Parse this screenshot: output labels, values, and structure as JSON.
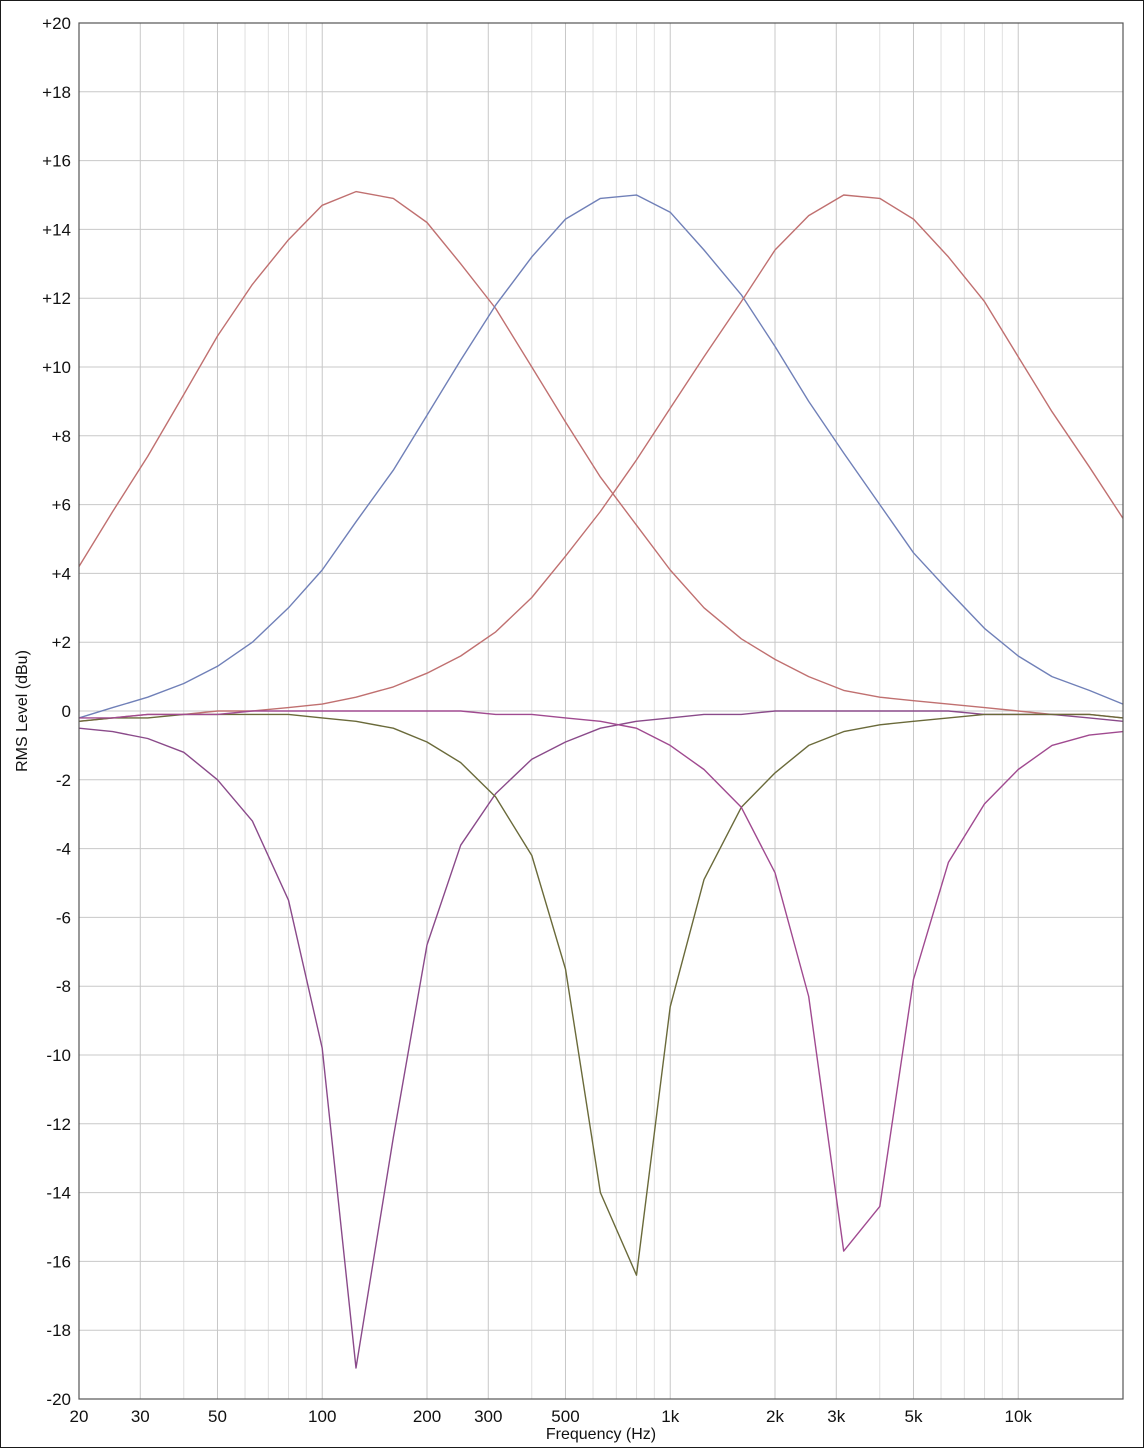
{
  "chart_data": {
    "type": "line",
    "xlabel": "Frequency (Hz)",
    "ylabel": "RMS Level (dBu)",
    "xscale": "log",
    "xlim": [
      20,
      20000
    ],
    "ylim": [
      -20,
      20
    ],
    "grid": true,
    "x_tick_labels": [
      {
        "value": 20,
        "label": "20"
      },
      {
        "value": 30,
        "label": "30"
      },
      {
        "value": 50,
        "label": "50"
      },
      {
        "value": 100,
        "label": "100"
      },
      {
        "value": 200,
        "label": "200"
      },
      {
        "value": 300,
        "label": "300"
      },
      {
        "value": 500,
        "label": "500"
      },
      {
        "value": 1000,
        "label": "1k"
      },
      {
        "value": 2000,
        "label": "2k"
      },
      {
        "value": 3000,
        "label": "3k"
      },
      {
        "value": 5000,
        "label": "5k"
      },
      {
        "value": 10000,
        "label": "10k"
      }
    ],
    "y_tick_labels": [
      {
        "value": 20,
        "label": "+20"
      },
      {
        "value": 18,
        "label": "+18"
      },
      {
        "value": 16,
        "label": "+16"
      },
      {
        "value": 14,
        "label": "+14"
      },
      {
        "value": 12,
        "label": "+12"
      },
      {
        "value": 10,
        "label": "+10"
      },
      {
        "value": 8,
        "label": "+8"
      },
      {
        "value": 6,
        "label": "+6"
      },
      {
        "value": 4,
        "label": "+4"
      },
      {
        "value": 2,
        "label": "+2"
      },
      {
        "value": 0,
        "label": "0"
      },
      {
        "value": -2,
        "label": "-2"
      },
      {
        "value": -4,
        "label": "-4"
      },
      {
        "value": -6,
        "label": "-6"
      },
      {
        "value": -8,
        "label": "-8"
      },
      {
        "value": -10,
        "label": "-10"
      },
      {
        "value": -12,
        "label": "-12"
      },
      {
        "value": -14,
        "label": "-14"
      },
      {
        "value": -16,
        "label": "-16"
      },
      {
        "value": -18,
        "label": "-18"
      },
      {
        "value": -20,
        "label": "-20"
      }
    ],
    "x": [
      20,
      25,
      31.5,
      40,
      50,
      63,
      80,
      100,
      125,
      160,
      200,
      250,
      315,
      400,
      500,
      630,
      800,
      1000,
      1250,
      1600,
      2000,
      2500,
      3150,
      4000,
      5000,
      6300,
      8000,
      10000,
      12500,
      16000,
      20000
    ],
    "series": [
      {
        "color": "#c07070",
        "values": [
          4.2,
          5.8,
          7.4,
          9.2,
          10.9,
          12.4,
          13.7,
          14.7,
          15.1,
          14.9,
          14.2,
          13.0,
          11.7,
          10.0,
          8.4,
          6.8,
          5.4,
          4.1,
          3.0,
          2.1,
          1.5,
          1.0,
          0.6,
          0.4,
          0.3,
          0.2,
          0.1,
          0.0,
          -0.1,
          -0.1,
          -0.2
        ]
      },
      {
        "color": "#7080b8",
        "values": [
          -0.2,
          0.1,
          0.4,
          0.8,
          1.3,
          2.0,
          3.0,
          4.1,
          5.5,
          7.0,
          8.6,
          10.2,
          11.8,
          13.2,
          14.3,
          14.9,
          15.0,
          14.5,
          13.4,
          12.1,
          10.6,
          9.0,
          7.5,
          6.0,
          4.6,
          3.5,
          2.4,
          1.6,
          1.0,
          0.6,
          0.2
        ]
      },
      {
        "color": "#c07070",
        "values": [
          -0.3,
          -0.2,
          -0.1,
          -0.1,
          0.0,
          0.0,
          0.1,
          0.2,
          0.4,
          0.7,
          1.1,
          1.6,
          2.3,
          3.3,
          4.5,
          5.8,
          7.3,
          8.8,
          10.3,
          11.9,
          13.4,
          14.4,
          15.0,
          14.9,
          14.3,
          13.2,
          11.9,
          10.3,
          8.7,
          7.1,
          5.6
        ]
      },
      {
        "color": "#8a4a8a",
        "values": [
          -0.5,
          -0.6,
          -0.8,
          -1.2,
          -2.0,
          -3.2,
          -5.5,
          -9.8,
          -19.1,
          -12.4,
          -6.8,
          -3.9,
          -2.4,
          -1.4,
          -0.9,
          -0.5,
          -0.3,
          -0.2,
          -0.1,
          -0.1,
          0.0,
          0.0,
          0.0,
          0.0,
          0.0,
          0.0,
          -0.1,
          -0.1,
          -0.1,
          -0.2,
          -0.3
        ]
      },
      {
        "color": "#6a6a3a",
        "values": [
          -0.3,
          -0.2,
          -0.2,
          -0.1,
          -0.1,
          -0.1,
          -0.1,
          -0.2,
          -0.3,
          -0.5,
          -0.9,
          -1.5,
          -2.5,
          -4.2,
          -7.5,
          -14.0,
          -16.4,
          -8.6,
          -4.9,
          -2.8,
          -1.8,
          -1.0,
          -0.6,
          -0.4,
          -0.3,
          -0.2,
          -0.1,
          -0.1,
          -0.1,
          -0.1,
          -0.2
        ]
      },
      {
        "color": "#a04a90",
        "values": [
          -0.2,
          -0.2,
          -0.1,
          -0.1,
          -0.1,
          0.0,
          0.0,
          0.0,
          0.0,
          0.0,
          0.0,
          0.0,
          -0.1,
          -0.1,
          -0.2,
          -0.3,
          -0.5,
          -1.0,
          -1.7,
          -2.8,
          -4.7,
          -8.3,
          -15.7,
          -14.4,
          -7.8,
          -4.4,
          -2.7,
          -1.7,
          -1.0,
          -0.7,
          -0.6
        ]
      }
    ]
  }
}
